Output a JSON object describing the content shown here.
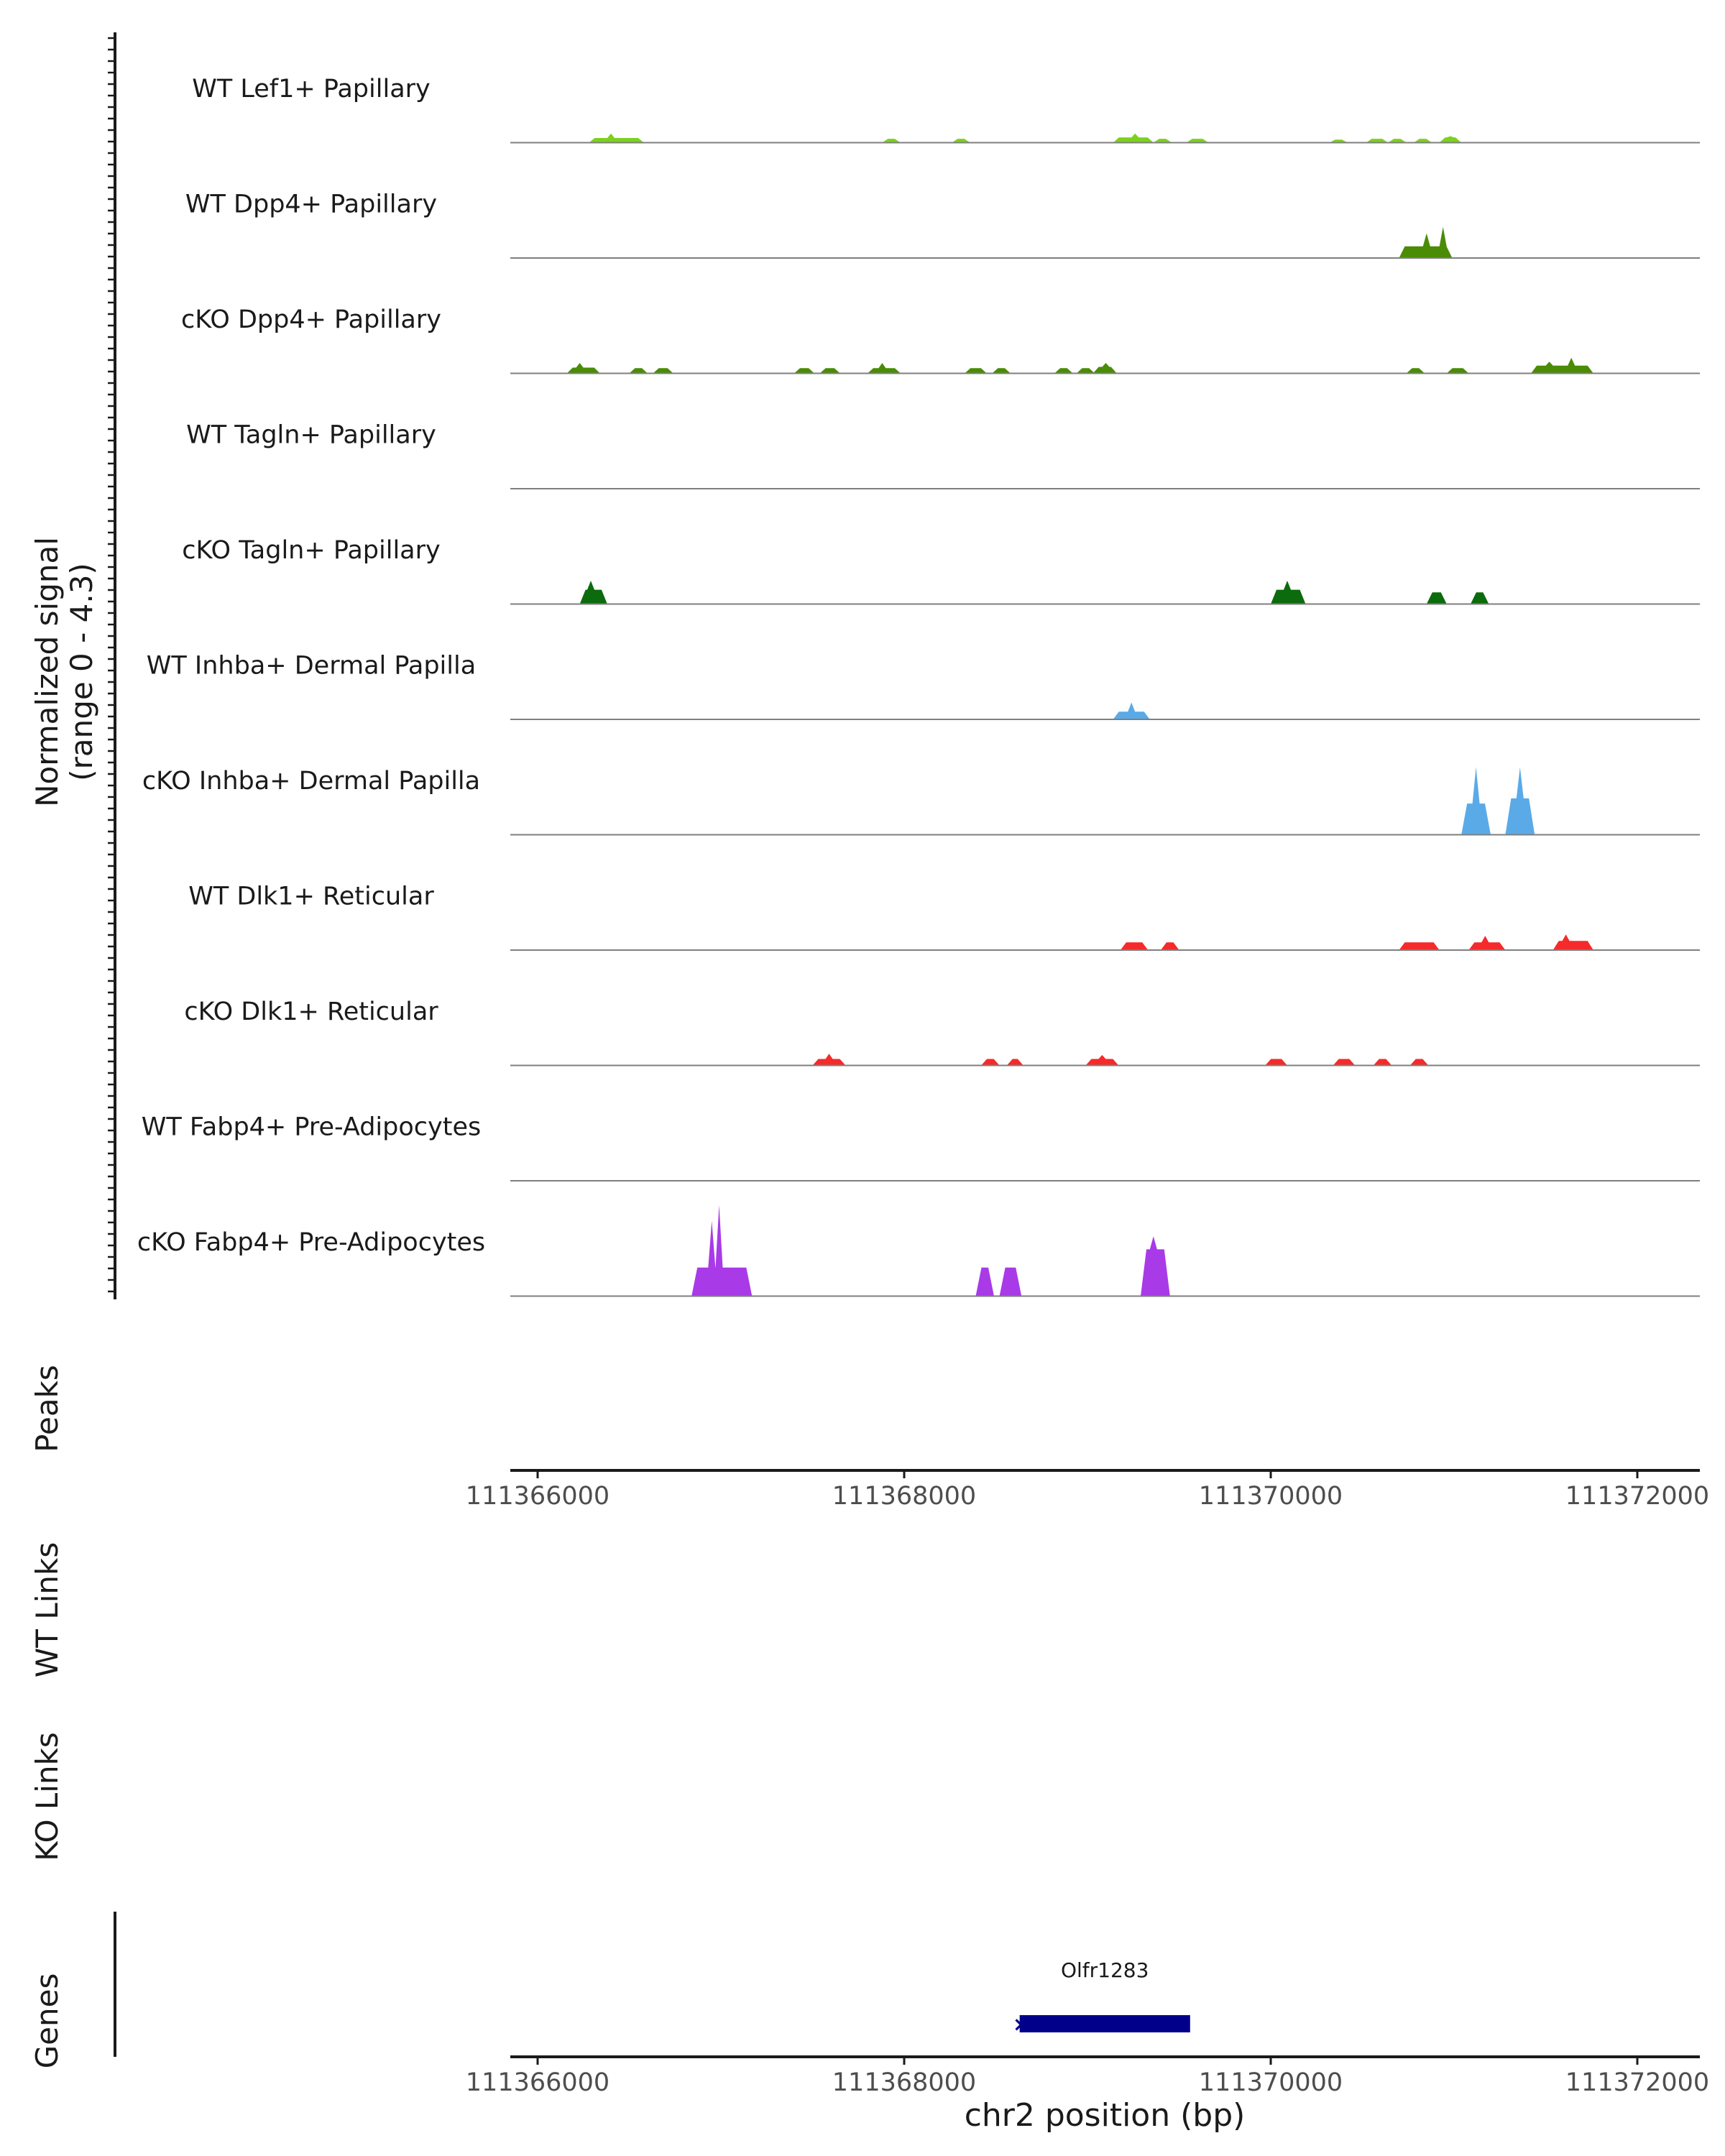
{
  "chart_data": {
    "type": "area",
    "title": "",
    "ylabel": "Normalized signal\n(range 0 - 4.3)",
    "xlabel": "chr2 position (bp)",
    "xlim": [
      111365700,
      111372350
    ],
    "ylim": [
      0,
      4.3
    ],
    "x_ticks": [
      111366000,
      111368000,
      111370000,
      111372000
    ],
    "tracks": [
      {
        "name": "WT Lef1+ Papillary",
        "color": "#7cd11d",
        "peaks": [
          [
            111366280,
            111366580,
            0.18,
            111366400,
            0.35
          ],
          [
            111367880,
            111367980,
            0.15
          ],
          [
            111368260,
            111368360,
            0.15
          ],
          [
            111369140,
            111369360,
            0.2,
            111369260,
            0.35
          ],
          [
            111369360,
            111369460,
            0.15
          ],
          [
            111369540,
            111369660,
            0.15
          ],
          [
            111370320,
            111370420,
            0.12
          ],
          [
            111370520,
            111370640,
            0.15
          ],
          [
            111370640,
            111370740,
            0.15
          ],
          [
            111370780,
            111370880,
            0.15
          ],
          [
            111370920,
            111371040,
            0.2,
            111370980,
            0.25
          ]
        ]
      },
      {
        "name": "WT Dpp4+ Papillary",
        "color": "#4a8c05",
        "peaks": [
          [
            111370700,
            111370990,
            0.45,
            111370850,
            0.95,
            111370940,
            1.2
          ]
        ]
      },
      {
        "name": "cKO Dpp4+ Papillary",
        "color": "#4a8c05",
        "peaks": [
          [
            111366160,
            111366340,
            0.22,
            111366230,
            0.4
          ],
          [
            111366500,
            111366600,
            0.2
          ],
          [
            111366630,
            111366740,
            0.2
          ],
          [
            111367400,
            111367510,
            0.2
          ],
          [
            111367540,
            111367650,
            0.2
          ],
          [
            111367800,
            111367980,
            0.2,
            111367880,
            0.4
          ],
          [
            111368330,
            111368450,
            0.2
          ],
          [
            111368480,
            111368580,
            0.2
          ],
          [
            111368820,
            111368920,
            0.2
          ],
          [
            111368940,
            111369040,
            0.2
          ],
          [
            111369030,
            111369160,
            0.25,
            111369100,
            0.4
          ],
          [
            111370740,
            111370840,
            0.2
          ],
          [
            111370960,
            111371080,
            0.2
          ],
          [
            111371420,
            111371760,
            0.3,
            111371520,
            0.45,
            111371640,
            0.6
          ]
        ]
      },
      {
        "name": "WT Tagln+ Papillary",
        "color": "#2e7d32",
        "peaks": []
      },
      {
        "name": "cKO Tagln+ Papillary",
        "color": "#0c6b0c",
        "peaks": [
          [
            111366230,
            111366380,
            0.55,
            111366290,
            0.9
          ],
          [
            111370000,
            111370190,
            0.55,
            111370090,
            0.9
          ],
          [
            111370850,
            111370960,
            0.45
          ],
          [
            111371090,
            111371190,
            0.45
          ]
        ]
      },
      {
        "name": "WT Inhba+ Dermal Papilla",
        "color": "#5aaae8",
        "peaks": [
          [
            111369140,
            111369340,
            0.3,
            111369240,
            0.65
          ]
        ]
      },
      {
        "name": "cKO Inhba+ Dermal Papilla",
        "color": "#5aaae8",
        "peaks": [
          [
            111371040,
            111371200,
            1.2,
            111371120,
            2.6
          ],
          [
            111371280,
            111371440,
            1.4,
            111371360,
            2.6
          ]
        ]
      },
      {
        "name": "WT Dlk1+ Reticular",
        "color": "#f52a2a",
        "peaks": [
          [
            111369180,
            111369330,
            0.3
          ],
          [
            111369400,
            111369500,
            0.3
          ],
          [
            111370700,
            111370920,
            0.3
          ],
          [
            111371080,
            111371280,
            0.3,
            111371170,
            0.55
          ],
          [
            111371540,
            111371760,
            0.35,
            111371610,
            0.6
          ]
        ]
      },
      {
        "name": "cKO Dlk1+ Reticular",
        "color": "#f52a2a",
        "peaks": [
          [
            111367500,
            111367680,
            0.25,
            111367590,
            0.45
          ],
          [
            111368420,
            111368520,
            0.25
          ],
          [
            111368560,
            111368650,
            0.25
          ],
          [
            111368990,
            111369170,
            0.25,
            111369080,
            0.4
          ],
          [
            111369970,
            111370090,
            0.25
          ],
          [
            111370340,
            111370460,
            0.25
          ],
          [
            111370560,
            111370660,
            0.25
          ],
          [
            111370760,
            111370860,
            0.25
          ]
        ]
      },
      {
        "name": "WT Fabp4+ Pre-Adipocytes",
        "color": "#a83ae8",
        "peaks": []
      },
      {
        "name": "cKO Fabp4+ Pre-Adipocytes",
        "color": "#a83ae8",
        "peaks": [
          [
            111366840,
            111367170,
            1.1,
            111366950,
            2.9,
            111366990,
            3.5
          ],
          [
            111368390,
            111368490,
            1.1
          ],
          [
            111368520,
            111368640,
            1.1
          ],
          [
            111369290,
            111369450,
            1.8,
            111369360,
            2.3
          ]
        ]
      }
    ],
    "empty_tracks": [
      "Peaks",
      "WT Links",
      "KO Links"
    ],
    "genes": [
      {
        "name": "Olfr1283",
        "start": 111368630,
        "end": 111369560,
        "strand": "-",
        "color": "#00008b"
      }
    ],
    "genes_label": "Genes"
  }
}
